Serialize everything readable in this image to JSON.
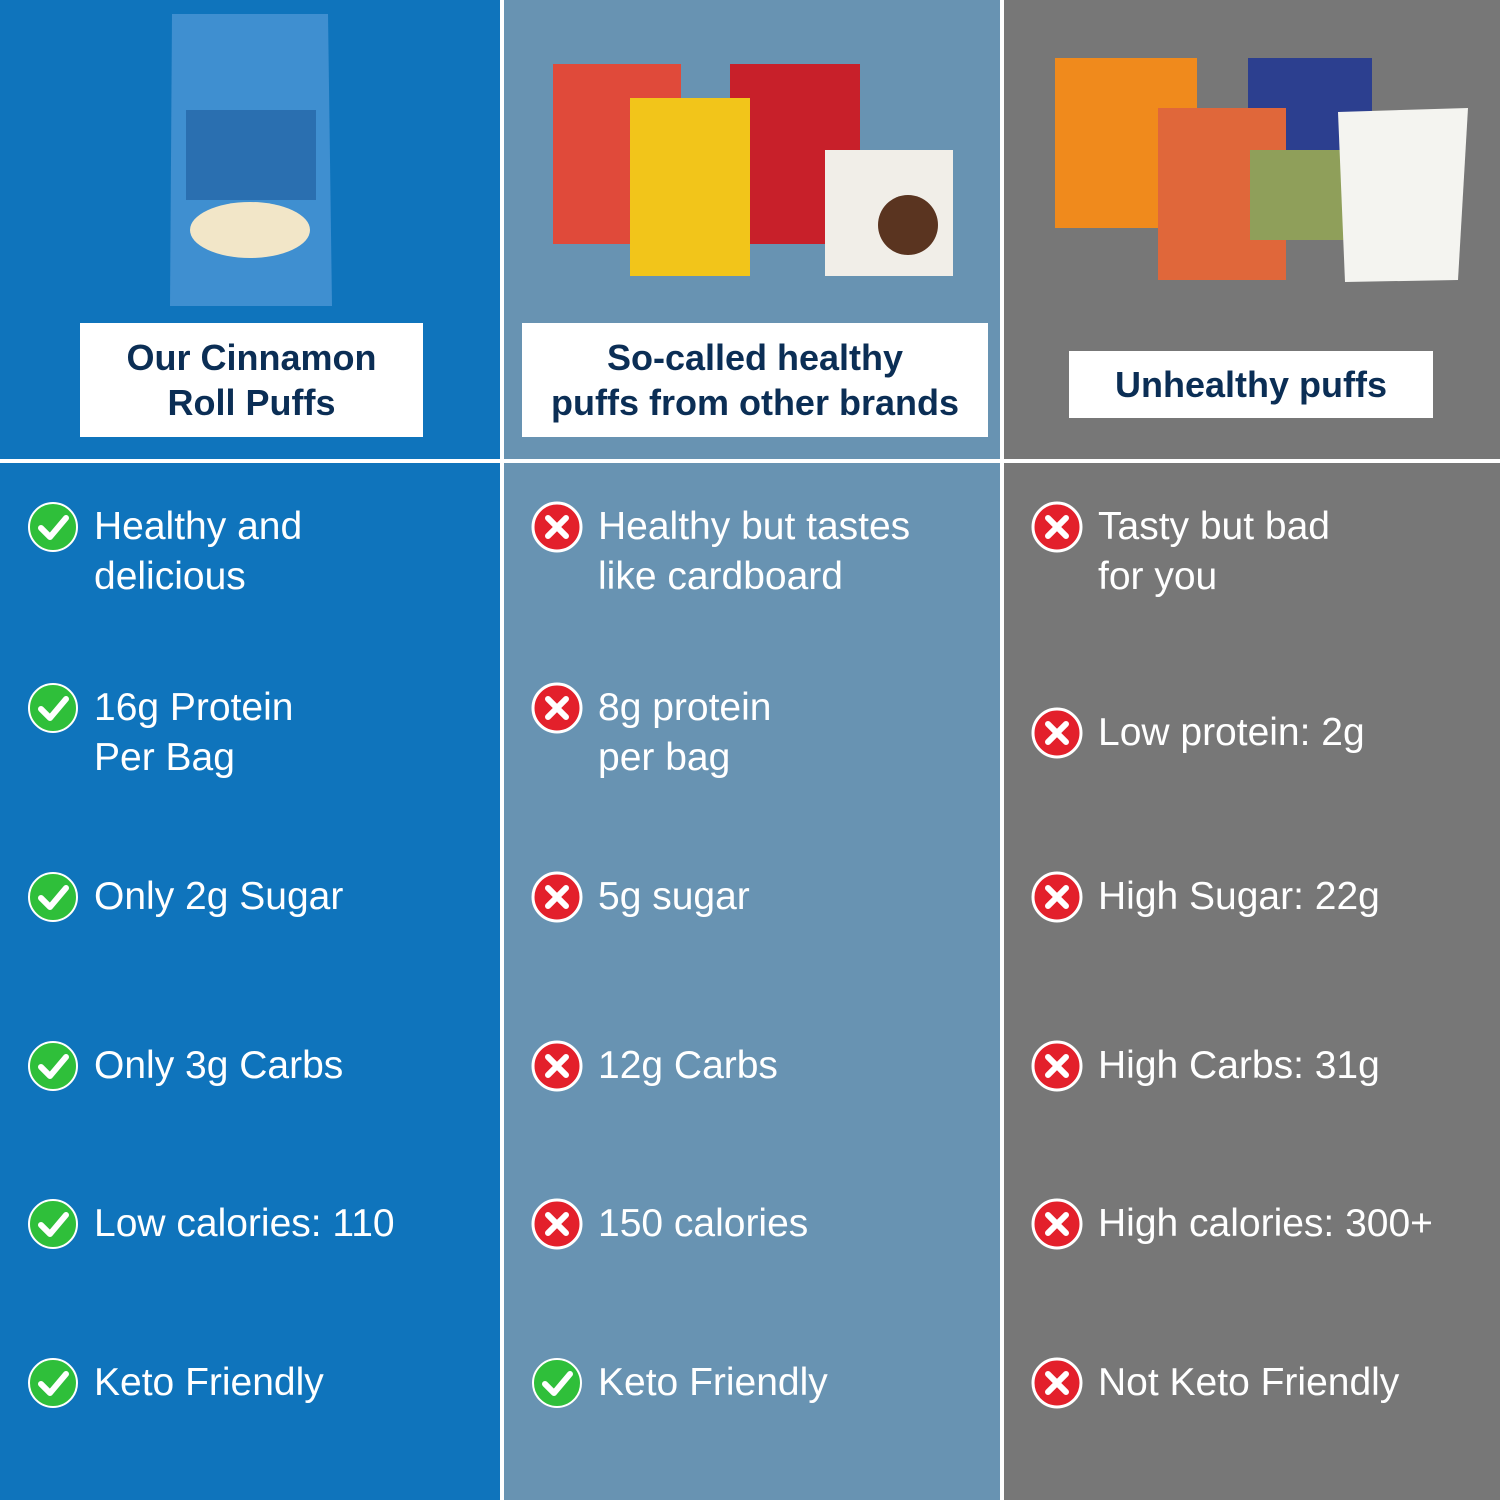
{
  "columns": [
    {
      "header": [
        "Our Cinnamon",
        "Roll Puffs"
      ],
      "items": [
        {
          "lines": [
            "Healthy and",
            "delicious"
          ],
          "status": "check"
        },
        {
          "lines": [
            "16g Protein",
            "Per Bag"
          ],
          "status": "check"
        },
        {
          "lines": [
            "Only 2g Sugar"
          ],
          "status": "check"
        },
        {
          "lines": [
            "Only 3g Carbs"
          ],
          "status": "check"
        },
        {
          "lines": [
            "Low calories: 110"
          ],
          "status": "check"
        },
        {
          "lines": [
            "Keto Friendly"
          ],
          "status": "check"
        }
      ]
    },
    {
      "header": [
        "So-called healthy",
        "puffs from other brands"
      ],
      "items": [
        {
          "lines": [
            "Healthy but tastes",
            "like cardboard"
          ],
          "status": "cross"
        },
        {
          "lines": [
            "8g protein",
            "per bag"
          ],
          "status": "cross"
        },
        {
          "lines": [
            "5g sugar"
          ],
          "status": "cross"
        },
        {
          "lines": [
            "12g Carbs"
          ],
          "status": "cross"
        },
        {
          "lines": [
            "150 calories"
          ],
          "status": "cross"
        },
        {
          "lines": [
            "Keto Friendly"
          ],
          "status": "check"
        }
      ]
    },
    {
      "header": [
        "Unhealthy puffs"
      ],
      "items": [
        {
          "lines": [
            "Tasty but bad",
            "for you"
          ],
          "status": "cross"
        },
        {
          "lines": [
            "Low protein: 2g"
          ],
          "status": "cross"
        },
        {
          "lines": [
            "High Sugar: 22g"
          ],
          "status": "cross"
        },
        {
          "lines": [
            "High Carbs: 31g"
          ],
          "status": "cross"
        },
        {
          "lines": [
            "High calories: 300+"
          ],
          "status": "cross"
        },
        {
          "lines": [
            "Not Keto Friendly"
          ],
          "status": "cross"
        }
      ]
    }
  ]
}
